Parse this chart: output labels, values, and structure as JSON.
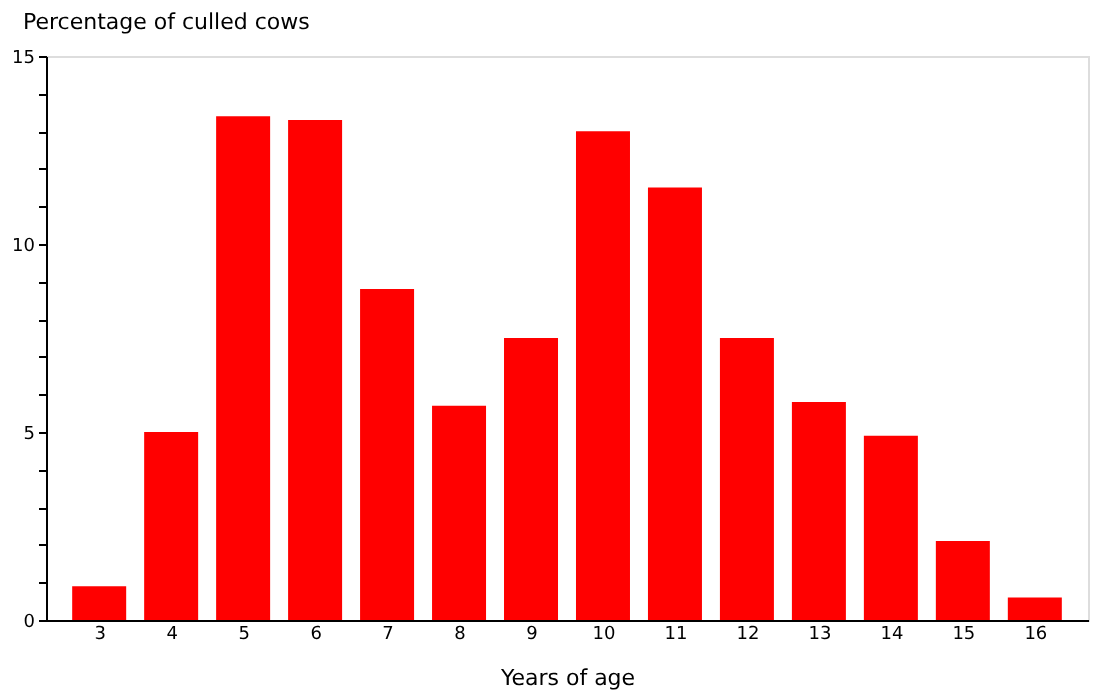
{
  "chart_data": {
    "type": "bar",
    "ylabel": "Percentage of culled cows",
    "xlabel": "Years of age",
    "categories": [
      "3",
      "4",
      "5",
      "6",
      "7",
      "8",
      "9",
      "10",
      "11",
      "12",
      "13",
      "14",
      "15",
      "16"
    ],
    "values": [
      0.9,
      5.0,
      13.4,
      13.3,
      8.8,
      5.7,
      7.5,
      13.0,
      11.5,
      7.5,
      5.8,
      4.9,
      2.1,
      0.6
    ],
    "color": "#ff0000",
    "ylim": [
      0,
      15
    ],
    "yticks": [
      0,
      {
        "value": 1,
        "label": null
      },
      {
        "value": 2,
        "label": null
      },
      {
        "value": 3,
        "label": null
      },
      {
        "value": 4,
        "label": null
      },
      5,
      {
        "value": 6,
        "label": null
      },
      {
        "value": 7,
        "label": null
      },
      {
        "value": 8,
        "label": null
      },
      {
        "value": 9,
        "label": null
      },
      10,
      {
        "value": 11,
        "label": null
      },
      {
        "value": 12,
        "label": null
      },
      {
        "value": 13,
        "label": null
      },
      {
        "value": 14,
        "label": null
      },
      15
    ],
    "grid": false
  }
}
